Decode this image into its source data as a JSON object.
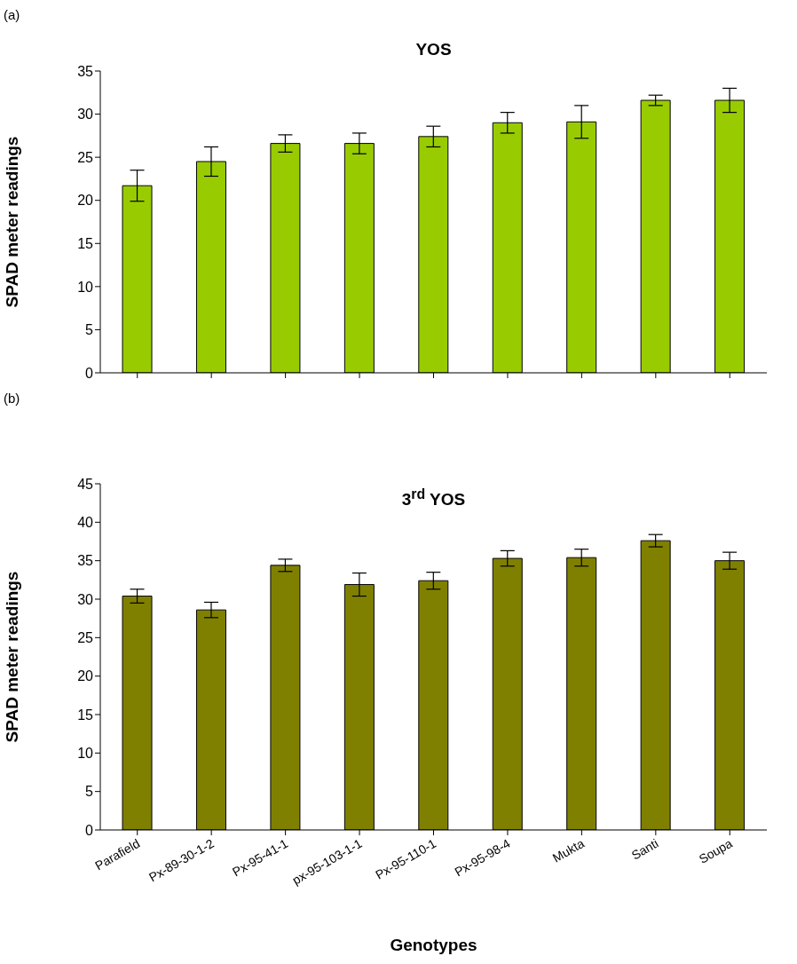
{
  "chart_data": [
    {
      "type": "bar",
      "title": "YOS",
      "ylabel": "SPAD meter readings",
      "annotations": [
        "(a)"
      ],
      "categories": [
        null,
        null,
        null,
        null,
        null,
        null,
        null,
        null,
        null
      ],
      "values": [
        21.7,
        24.5,
        26.6,
        26.6,
        27.4,
        29.0,
        29.1,
        31.6,
        31.6
      ],
      "errors": [
        1.8,
        1.7,
        1.0,
        1.2,
        1.2,
        1.2,
        1.9,
        0.6,
        1.4
      ],
      "color": "#99cc00",
      "ylim": [
        0,
        35
      ],
      "yticks": [
        0,
        5,
        10,
        15,
        20,
        25,
        30,
        35
      ],
      "tick_labels": "y",
      "grid": false,
      "legend": false
    },
    {
      "type": "bar",
      "title": "3$^{rd}$ YOS",
      "ylabel": "SPAD meter readings",
      "xlabel": "Genotypes",
      "annotations": [
        "(b)"
      ],
      "categories": [
        "Parafield",
        "Px-89-30-1-2",
        "Px-95-41-1",
        "px-95-103-1-1",
        "Px-95-110-1",
        "Px-95-98-4",
        "Mukta",
        "Santi",
        "Soupa"
      ],
      "values": [
        30.4,
        28.6,
        34.4,
        31.9,
        32.4,
        35.3,
        35.4,
        37.6,
        35.0
      ],
      "errors": [
        0.9,
        1.0,
        0.8,
        1.5,
        1.1,
        1.0,
        1.1,
        0.8,
        1.1
      ],
      "color": "#808000",
      "ylim": [
        0,
        45
      ],
      "yticks": [
        0,
        5,
        10,
        15,
        20,
        25,
        30,
        35,
        40,
        45
      ],
      "grid": false,
      "legend": false
    }
  ]
}
